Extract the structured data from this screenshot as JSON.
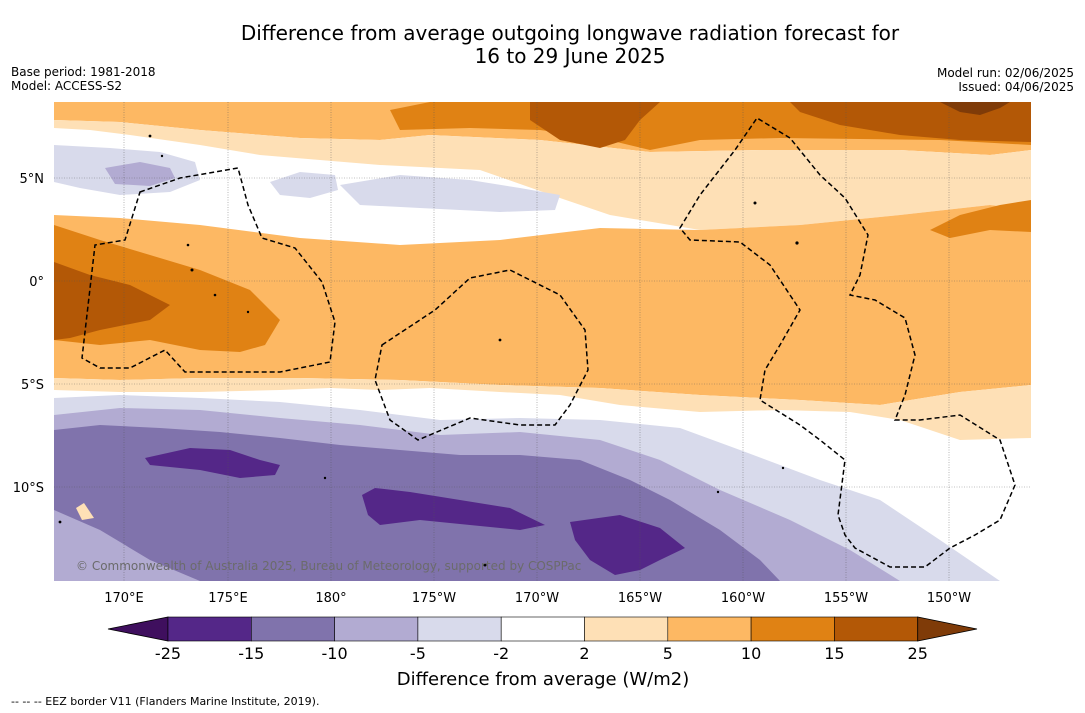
{
  "title_line1": "Difference from average outgoing longwave radiation forecast for",
  "title_line2": "16 to 29 June 2025",
  "base_period": "Base period: 1981-2018",
  "model": "Model: ACCESS-S2",
  "model_run": "Model run: 02/06/2025",
  "issued": "Issued: 04/06/2025",
  "copyright": "© Commonwealth of Australia 2025, Bureau of Meteorology, supported by COSPPac",
  "footer": "--  --  -- EEZ border V11 (Flanders Marine Institute, 2019).",
  "colorbar": {
    "title": "Difference from average (W/m2)",
    "tick_labels": [
      "-25",
      "-15",
      "-10",
      "-5",
      "-2",
      "2",
      "5",
      "10",
      "15",
      "25"
    ],
    "colors": [
      "#3f0f5e",
      "#542788",
      "#8073ac",
      "#b2abd2",
      "#d8daeb",
      "#ffffff",
      "#fee0b6",
      "#fdb863",
      "#e08214",
      "#b35806",
      "#7f3b08"
    ]
  },
  "map": {
    "lat_labels": [
      "5°N",
      "0°",
      "5°S",
      "10°S"
    ],
    "lon_labels": [
      "170°E",
      "175°E",
      "180°",
      "175°W",
      "170°W",
      "165°W",
      "160°W",
      "155°W",
      "150°W"
    ],
    "lon_extent": [
      "166.5°E",
      "146.0°W"
    ],
    "lat_extent": [
      "8.8°N",
      "14.5°S"
    ],
    "gridlines": true
  }
}
